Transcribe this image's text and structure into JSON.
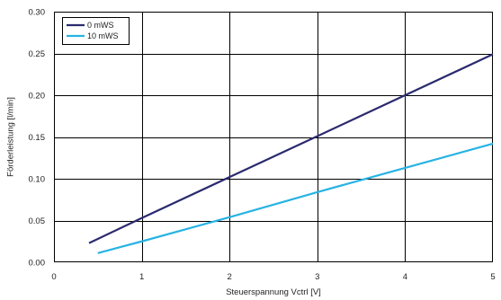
{
  "chart_data": {
    "type": "line",
    "title": "",
    "xlabel": "Steuerspannung Vctrl [V]",
    "ylabel": "Förderleistung [l/min]",
    "xlim": [
      0,
      5
    ],
    "ylim": [
      0,
      0.3
    ],
    "x_ticks": [
      0,
      1,
      2,
      3,
      4,
      5
    ],
    "x_tick_labels": [
      "0",
      "1",
      "2",
      "3",
      "4",
      "5"
    ],
    "y_ticks": [
      0.0,
      0.05,
      0.1,
      0.15,
      0.2,
      0.25,
      0.3
    ],
    "y_tick_labels": [
      "0.00",
      "0.05",
      "0.10",
      "0.15",
      "0.20",
      "0.25",
      "0.30"
    ],
    "grid": true,
    "legend_position": "top-left",
    "series": [
      {
        "name": "0 mWS",
        "color": "#2b2a6e",
        "x": [
          0.4,
          1,
          2,
          3,
          4,
          5
        ],
        "y": [
          0.023,
          0.053,
          0.102,
          0.151,
          0.2,
          0.249
        ]
      },
      {
        "name": "10 mWS",
        "color": "#27b3e3",
        "x": [
          0.5,
          1,
          2,
          3,
          4,
          5
        ],
        "y": [
          0.011,
          0.025,
          0.054,
          0.084,
          0.113,
          0.142
        ]
      }
    ]
  }
}
